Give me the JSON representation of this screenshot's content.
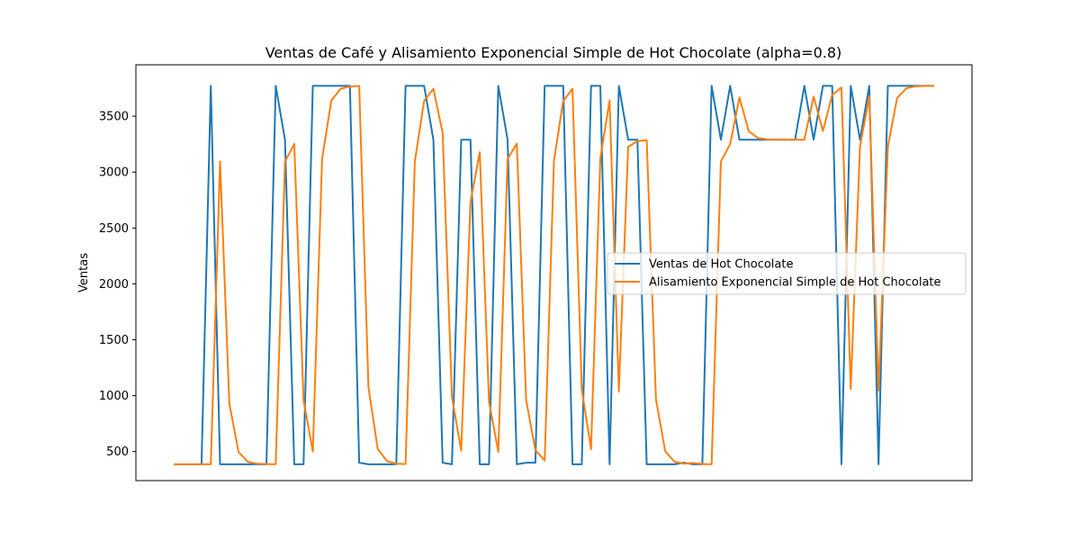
{
  "chart_data": {
    "type": "line",
    "title": "Ventas de Café y Alisamiento Exponencial Simple de Hot Chocolate (alpha=0.8)",
    "xlabel": "",
    "ylabel": "Ventas",
    "ylim": [
      240,
      3960
    ],
    "yticks": [
      500,
      1000,
      1500,
      2000,
      2500,
      3000,
      3500
    ],
    "ytick_labels": [
      "500",
      "1000",
      "1500",
      "2000",
      "2500",
      "3000",
      "3500"
    ],
    "xticks_visible": false,
    "grid": false,
    "legend_position": "center-right",
    "series": [
      {
        "name": "Ventas de Hot Chocolate",
        "color": "#1f77b4",
        "values": [
          386,
          386,
          386,
          386,
          3772,
          386,
          386,
          386,
          386,
          386,
          386,
          3772,
          3290,
          386,
          386,
          3772,
          3772,
          3772,
          3772,
          3772,
          400,
          386,
          386,
          386,
          386,
          3772,
          3772,
          3772,
          3290,
          400,
          386,
          3290,
          3290,
          386,
          386,
          3772,
          3290,
          386,
          400,
          400,
          3772,
          3772,
          3772,
          386,
          386,
          3772,
          3772,
          386,
          3772,
          3290,
          3290,
          386,
          386,
          386,
          386,
          400,
          386,
          386,
          3772,
          3290,
          3772,
          3290,
          3290,
          3290,
          3290,
          3290,
          3290,
          3290,
          3772,
          3290,
          3772,
          3772,
          386,
          3772,
          3290,
          3772,
          386,
          3772,
          3772,
          3772,
          3772,
          3772,
          3772
        ]
      },
      {
        "name": "Alisamiento Exponencial Simple de Hot Chocolate",
        "color": "#ff7f0e",
        "values": [
          386,
          386,
          386,
          386,
          386,
          3095,
          928,
          494,
          408,
          391,
          388,
          386,
          3095,
          3251,
          959,
          501,
          3118,
          3641,
          3746,
          3766,
          3771,
          1074,
          524,
          414,
          391,
          388,
          3095,
          3637,
          3745,
          3350,
          990,
          507,
          2733,
          3178,
          944,
          498,
          3117,
          3255,
          960,
          512,
          420,
          3101,
          3638,
          3745,
          1058,
          520,
          3122,
          3642,
          1037,
          3225,
          3277,
          3287,
          966,
          502,
          409,
          391,
          398,
          388,
          386,
          3095,
          3251,
          3668,
          3366,
          3305,
          3293,
          3290,
          3290,
          3290,
          3290,
          3676,
          3367,
          3691,
          3756,
          1060,
          3230,
          3678,
          1044,
          3226,
          3663,
          3750,
          3768,
          3771,
          3772
        ]
      }
    ]
  }
}
